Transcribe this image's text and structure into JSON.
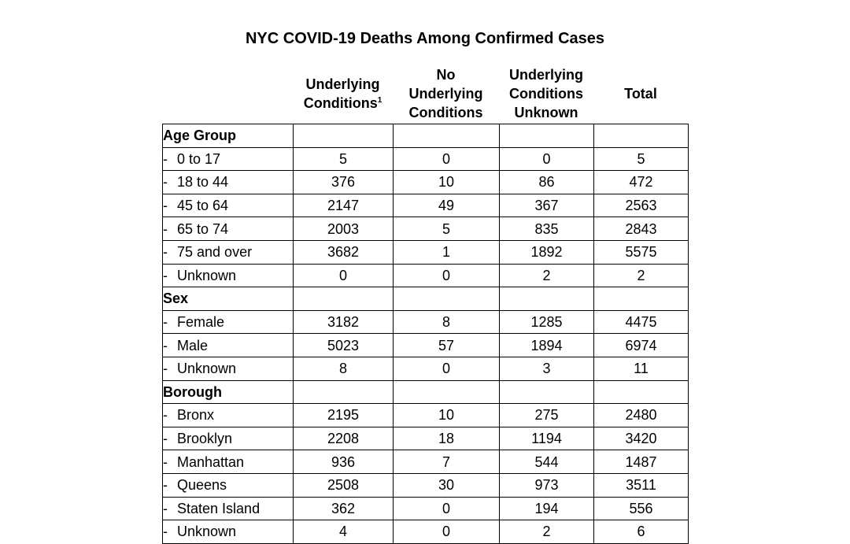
{
  "title": "NYC COVID-19 Deaths Among Confirmed Cases",
  "columns": [
    {
      "lines": [
        "Underlying",
        "Conditions"
      ],
      "footnote": "1"
    },
    {
      "lines": [
        "No",
        "Underlying",
        "Conditions"
      ],
      "footnote": ""
    },
    {
      "lines": [
        "Underlying",
        "Conditions",
        "Unknown"
      ],
      "footnote": ""
    },
    {
      "lines": [
        "Total"
      ],
      "footnote": ""
    }
  ],
  "row_prefix": "-",
  "groups": [
    {
      "name": "Age Group",
      "rows": [
        {
          "label": "0 to 17",
          "values": [
            "5",
            "0",
            "0",
            "5"
          ]
        },
        {
          "label": "18 to 44",
          "values": [
            "376",
            "10",
            "86",
            "472"
          ]
        },
        {
          "label": "45 to 64",
          "values": [
            "2147",
            "49",
            "367",
            "2563"
          ]
        },
        {
          "label": "65 to 74",
          "values": [
            "2003",
            "5",
            "835",
            "2843"
          ]
        },
        {
          "label": "75 and over",
          "values": [
            "3682",
            "1",
            "1892",
            "5575"
          ]
        },
        {
          "label": "Unknown",
          "values": [
            "0",
            "0",
            "2",
            "2"
          ]
        }
      ]
    },
    {
      "name": "Sex",
      "rows": [
        {
          "label": "Female",
          "values": [
            "3182",
            "8",
            "1285",
            "4475"
          ]
        },
        {
          "label": "Male",
          "values": [
            "5023",
            "57",
            "1894",
            "6974"
          ]
        },
        {
          "label": "Unknown",
          "values": [
            "8",
            "0",
            "3",
            "11"
          ]
        }
      ]
    },
    {
      "name": "Borough",
      "rows": [
        {
          "label": "Bronx",
          "values": [
            "2195",
            "10",
            "275",
            "2480"
          ]
        },
        {
          "label": "Brooklyn",
          "values": [
            "2208",
            "18",
            "1194",
            "3420"
          ]
        },
        {
          "label": "Manhattan",
          "values": [
            "936",
            "7",
            "544",
            "1487"
          ]
        },
        {
          "label": "Queens",
          "values": [
            "2508",
            "30",
            "973",
            "3511"
          ]
        },
        {
          "label": "Staten Island",
          "values": [
            "362",
            "0",
            "194",
            "556"
          ]
        },
        {
          "label": "Unknown",
          "values": [
            "4",
            "0",
            "2",
            "6"
          ]
        }
      ]
    }
  ]
}
